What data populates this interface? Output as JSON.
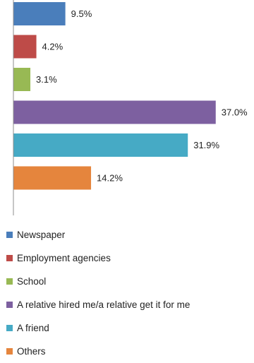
{
  "chart_data": {
    "type": "bar",
    "orientation": "horizontal",
    "categories": [
      "Newspaper",
      "Employment agencies",
      "School",
      "A relative hired me/a relative get it for me",
      "A friend",
      "Others"
    ],
    "values": [
      9.5,
      4.2,
      3.1,
      37.0,
      31.9,
      14.2
    ],
    "data_labels": [
      "9.5%",
      "4.2%",
      "3.1%",
      "37.0%",
      "31.9%",
      "14.2%"
    ],
    "colors": [
      "#4a7ebb",
      "#be4b48",
      "#98b954",
      "#7d60a0",
      "#46aac5",
      "#e5853d"
    ],
    "axis_color": "#8c8c8c",
    "xlim": [
      0,
      40
    ],
    "grid": false,
    "legend_position": "bottom"
  }
}
